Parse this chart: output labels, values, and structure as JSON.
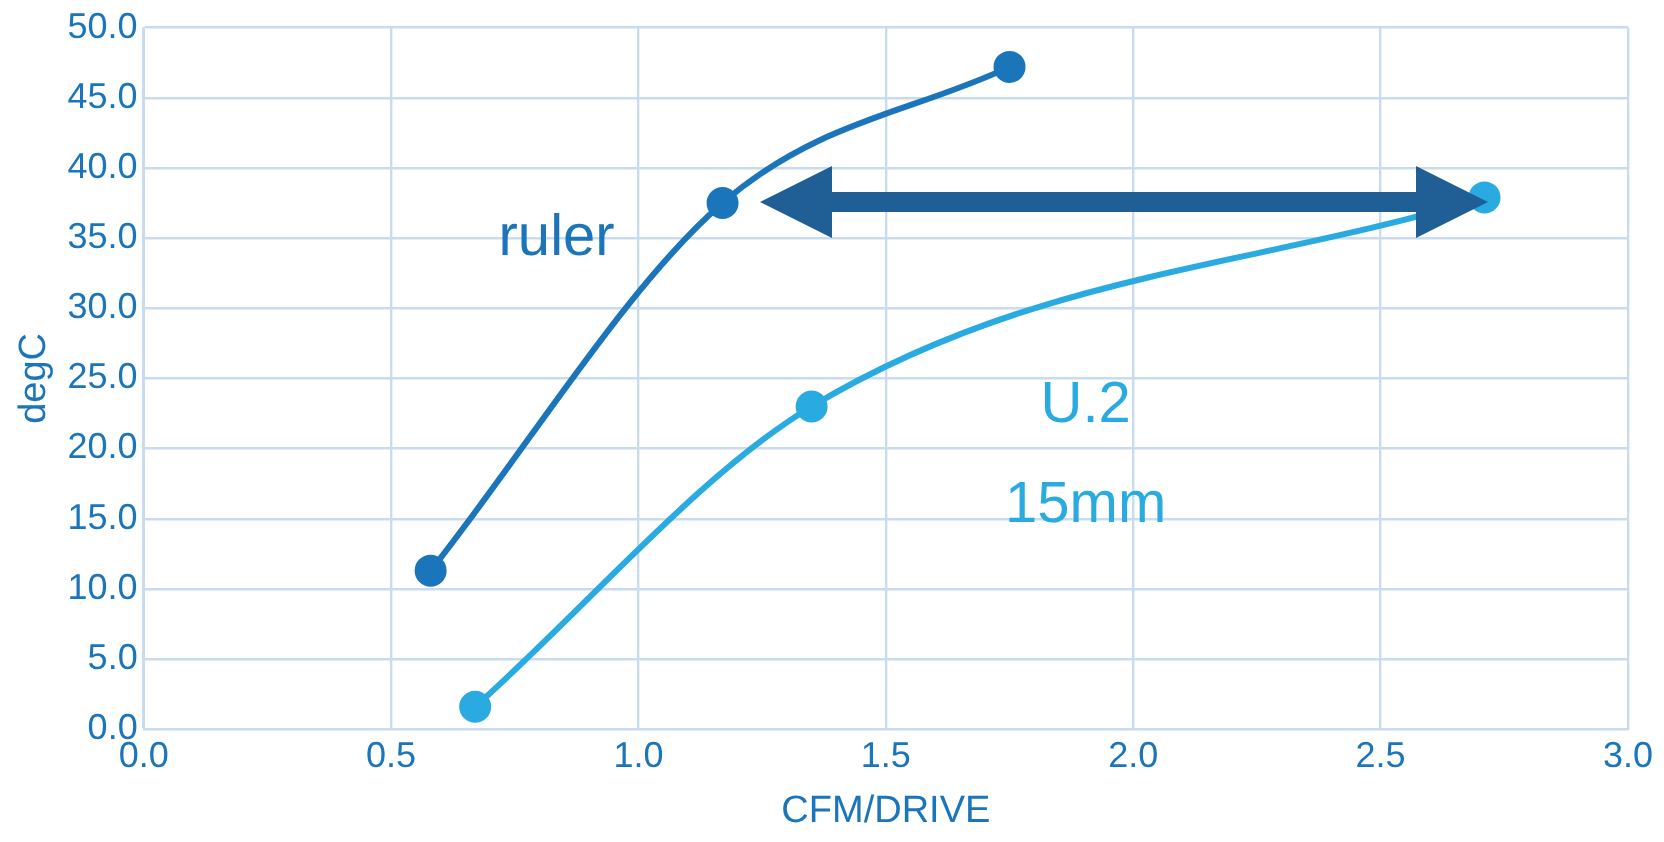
{
  "chart_data": {
    "type": "line",
    "xlabel": "CFM/DRIVE",
    "ylabel": "degC",
    "xlim": [
      0,
      3
    ],
    "xticks": [
      {
        "value": 0,
        "label": "0.0"
      },
      {
        "value": 0.5,
        "label": "0.5"
      },
      {
        "value": 1,
        "label": "1.0"
      },
      {
        "value": 1.5,
        "label": "1.5"
      },
      {
        "value": 2,
        "label": "2.0"
      },
      {
        "value": 2.5,
        "label": "2.5"
      },
      {
        "value": 3,
        "label": "3.0"
      }
    ],
    "ylim": [
      0,
      50
    ],
    "yticks": [
      {
        "value": 0,
        "label": "0.0"
      },
      {
        "value": 5,
        "label": "5.0"
      },
      {
        "value": 10,
        "label": "10.0"
      },
      {
        "value": 15,
        "label": "15.0"
      },
      {
        "value": 20,
        "label": "20.0"
      },
      {
        "value": 25,
        "label": "25.0"
      },
      {
        "value": 30,
        "label": "30.0"
      },
      {
        "value": 35,
        "label": "35.0"
      },
      {
        "value": 40,
        "label": "40.0"
      },
      {
        "value": 45,
        "label": "45.0"
      },
      {
        "value": 50,
        "label": "50.0"
      }
    ],
    "grid": true,
    "legend": false,
    "marker": "circle",
    "line_style": "solid",
    "series": [
      {
        "name": "ruler",
        "color": "#1b75bb",
        "x": [
          0.58,
          1.17,
          1.75
        ],
        "values": [
          11.3,
          37.5,
          47.2
        ]
      },
      {
        "name": "U.2 15mm",
        "color": "#29aae1",
        "x": [
          0.67,
          1.35,
          2.71
        ],
        "values": [
          1.6,
          23.0,
          37.9
        ]
      }
    ]
  }
}
